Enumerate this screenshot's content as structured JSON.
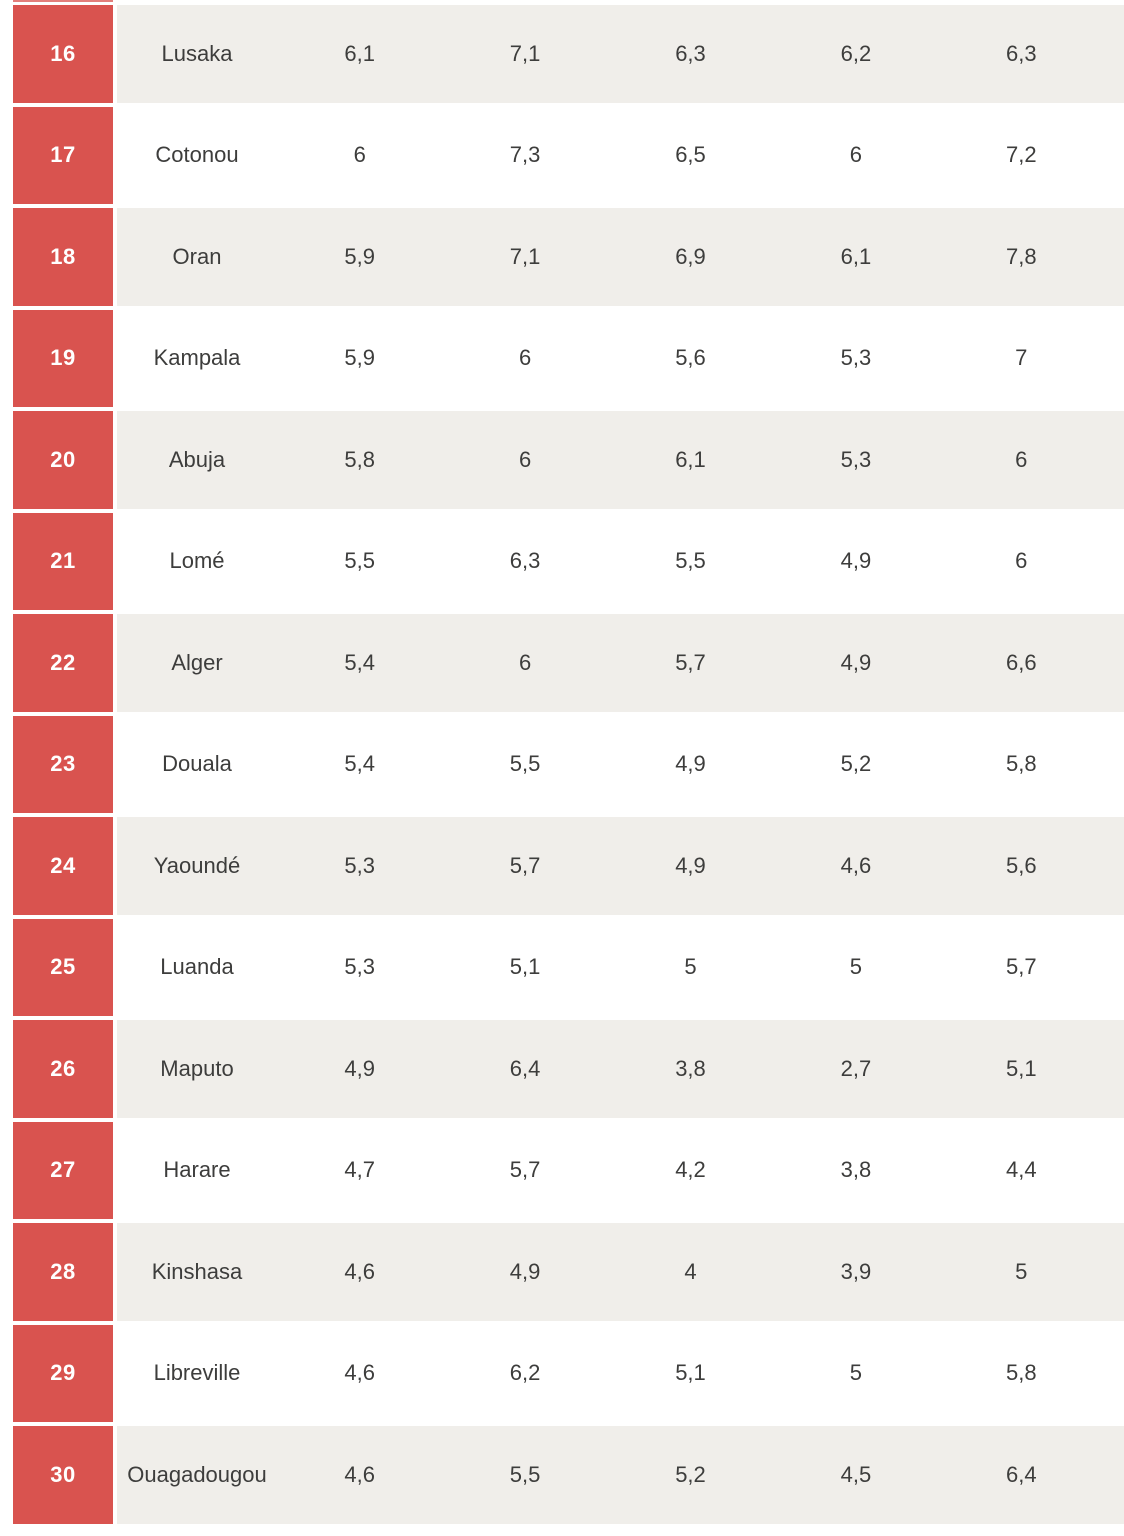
{
  "table": {
    "rank_color": "#d9534f",
    "alt_row_color": "#f0eeea",
    "text_color": "#3d3d3c",
    "rows": [
      {
        "rank": "16",
        "city": "Lusaka",
        "values": [
          "6,1",
          "7,1",
          "6,3",
          "6,2",
          "6,3"
        ]
      },
      {
        "rank": "17",
        "city": "Cotonou",
        "values": [
          "6",
          "7,3",
          "6,5",
          "6",
          "7,2"
        ]
      },
      {
        "rank": "18",
        "city": "Oran",
        "values": [
          "5,9",
          "7,1",
          "6,9",
          "6,1",
          "7,8"
        ]
      },
      {
        "rank": "19",
        "city": "Kampala",
        "values": [
          "5,9",
          "6",
          "5,6",
          "5,3",
          "7"
        ]
      },
      {
        "rank": "20",
        "city": "Abuja",
        "values": [
          "5,8",
          "6",
          "6,1",
          "5,3",
          "6"
        ]
      },
      {
        "rank": "21",
        "city": "Lomé",
        "values": [
          "5,5",
          "6,3",
          "5,5",
          "4,9",
          "6"
        ]
      },
      {
        "rank": "22",
        "city": "Alger",
        "values": [
          "5,4",
          "6",
          "5,7",
          "4,9",
          "6,6"
        ]
      },
      {
        "rank": "23",
        "city": "Douala",
        "values": [
          "5,4",
          "5,5",
          "4,9",
          "5,2",
          "5,8"
        ]
      },
      {
        "rank": "24",
        "city": "Yaoundé",
        "values": [
          "5,3",
          "5,7",
          "4,9",
          "4,6",
          "5,6"
        ]
      },
      {
        "rank": "25",
        "city": "Luanda",
        "values": [
          "5,3",
          "5,1",
          "5",
          "5",
          "5,7"
        ]
      },
      {
        "rank": "26",
        "city": "Maputo",
        "values": [
          "4,9",
          "6,4",
          "3,8",
          "2,7",
          "5,1"
        ]
      },
      {
        "rank": "27",
        "city": "Harare",
        "values": [
          "4,7",
          "5,7",
          "4,2",
          "3,8",
          "4,4"
        ]
      },
      {
        "rank": "28",
        "city": "Kinshasa",
        "values": [
          "4,6",
          "4,9",
          "4",
          "3,9",
          "5"
        ]
      },
      {
        "rank": "29",
        "city": "Libreville",
        "values": [
          "4,6",
          "6,2",
          "5,1",
          "5",
          "5,8"
        ]
      },
      {
        "rank": "30",
        "city": "Ouagadougou",
        "values": [
          "4,6",
          "5,5",
          "5,2",
          "4,5",
          "6,4"
        ]
      }
    ]
  },
  "chart_data": {
    "type": "table",
    "columns": [
      "rank",
      "city",
      "value_1",
      "value_2",
      "value_3",
      "value_4",
      "value_5"
    ],
    "rows": [
      [
        16,
        "Lusaka",
        6.1,
        7.1,
        6.3,
        6.2,
        6.3
      ],
      [
        17,
        "Cotonou",
        6.0,
        7.3,
        6.5,
        6.0,
        7.2
      ],
      [
        18,
        "Oran",
        5.9,
        7.1,
        6.9,
        6.1,
        7.8
      ],
      [
        19,
        "Kampala",
        5.9,
        6.0,
        5.6,
        5.3,
        7.0
      ],
      [
        20,
        "Abuja",
        5.8,
        6.0,
        6.1,
        5.3,
        6.0
      ],
      [
        21,
        "Lomé",
        5.5,
        6.3,
        5.5,
        4.9,
        6.0
      ],
      [
        22,
        "Alger",
        5.4,
        6.0,
        5.7,
        4.9,
        6.6
      ],
      [
        23,
        "Douala",
        5.4,
        5.5,
        4.9,
        5.2,
        5.8
      ],
      [
        24,
        "Yaoundé",
        5.3,
        5.7,
        4.9,
        4.6,
        5.6
      ],
      [
        25,
        "Luanda",
        5.3,
        5.1,
        5.0,
        5.0,
        5.7
      ],
      [
        26,
        "Maputo",
        4.9,
        6.4,
        3.8,
        2.7,
        5.1
      ],
      [
        27,
        "Harare",
        4.7,
        5.7,
        4.2,
        3.8,
        4.4
      ],
      [
        28,
        "Kinshasa",
        4.6,
        4.9,
        4.0,
        3.9,
        5.0
      ],
      [
        29,
        "Libreville",
        4.6,
        6.2,
        5.1,
        5.0,
        5.8
      ],
      [
        30,
        "Ouagadougou",
        4.6,
        5.5,
        5.2,
        4.5,
        6.4
      ]
    ],
    "notes": "Ranking table of African cities (ranks 16-30), decimal comma display, alternating row shading, red rank column"
  }
}
